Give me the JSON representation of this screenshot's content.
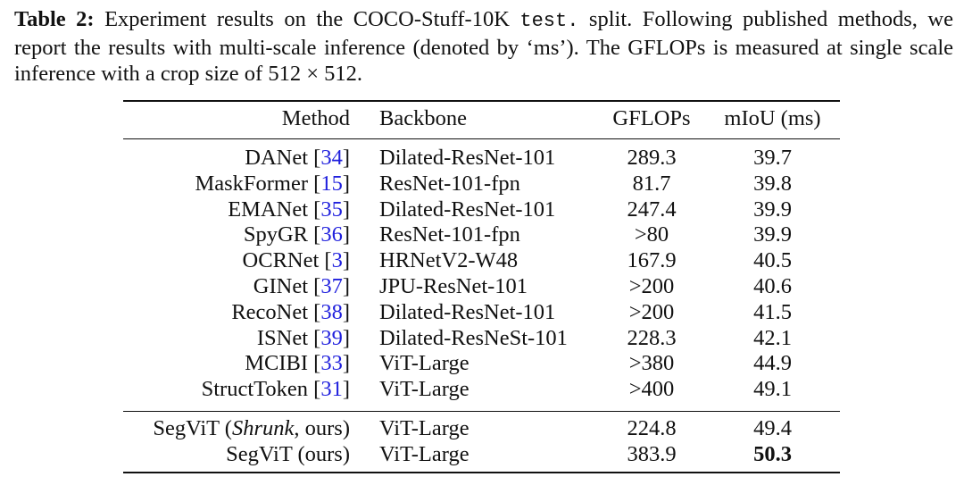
{
  "caption": {
    "label": "Table 2:",
    "part1": " Experiment results on the COCO-Stuff-10K ",
    "code": "test.",
    "part2": " split. Following published methods, we report the results with multi-scale inference (denoted by ‘ms’). The GFLOPs is measured at single scale inference with a crop size of ",
    "math": "512 × 512",
    "part3": "."
  },
  "table": {
    "headers": {
      "method": "Method",
      "backbone": "Backbone",
      "gflops": "GFLOPs",
      "miou": "mIoU (ms)"
    },
    "rows": [
      {
        "name": "DANet",
        "ref": "34",
        "backbone": "Dilated-ResNet-101",
        "gflops": "289.3",
        "miou": "39.7"
      },
      {
        "name": "MaskFormer",
        "ref": "15",
        "backbone": "ResNet-101-fpn",
        "gflops": "81.7",
        "miou": "39.8"
      },
      {
        "name": "EMANet",
        "ref": "35",
        "backbone": "Dilated-ResNet-101",
        "gflops": "247.4",
        "miou": "39.9"
      },
      {
        "name": "SpyGR",
        "ref": "36",
        "backbone": "ResNet-101-fpn",
        "gflops": ">80",
        "miou": "39.9"
      },
      {
        "name": "OCRNet",
        "ref": "3",
        "backbone": "HRNetV2-W48",
        "gflops": "167.9",
        "miou": "40.5"
      },
      {
        "name": "GINet",
        "ref": "37",
        "backbone": "JPU-ResNet-101",
        "gflops": ">200",
        "miou": "40.6"
      },
      {
        "name": "RecoNet",
        "ref": "38",
        "backbone": "Dilated-ResNet-101",
        "gflops": ">200",
        "miou": "41.5"
      },
      {
        "name": "ISNet",
        "ref": "39",
        "backbone": "Dilated-ResNeSt-101",
        "gflops": "228.3",
        "miou": "42.1"
      },
      {
        "name": "MCIBI",
        "ref": "33",
        "backbone": "ViT-Large",
        "gflops": ">380",
        "miou": "44.9"
      },
      {
        "name": "StructToken",
        "ref": "31",
        "backbone": "ViT-Large",
        "gflops": ">400",
        "miou": "49.1"
      }
    ],
    "ours": [
      {
        "prefix": "SegViT (",
        "italic": "Shrunk",
        "suffix": ", ours)",
        "backbone": "ViT-Large",
        "gflops": "224.8",
        "miou": "49.4"
      },
      {
        "prefix": "SegViT (ours)",
        "italic": "",
        "suffix": "",
        "backbone": "ViT-Large",
        "gflops": "383.9",
        "miou": "50.3",
        "best": true
      }
    ]
  }
}
